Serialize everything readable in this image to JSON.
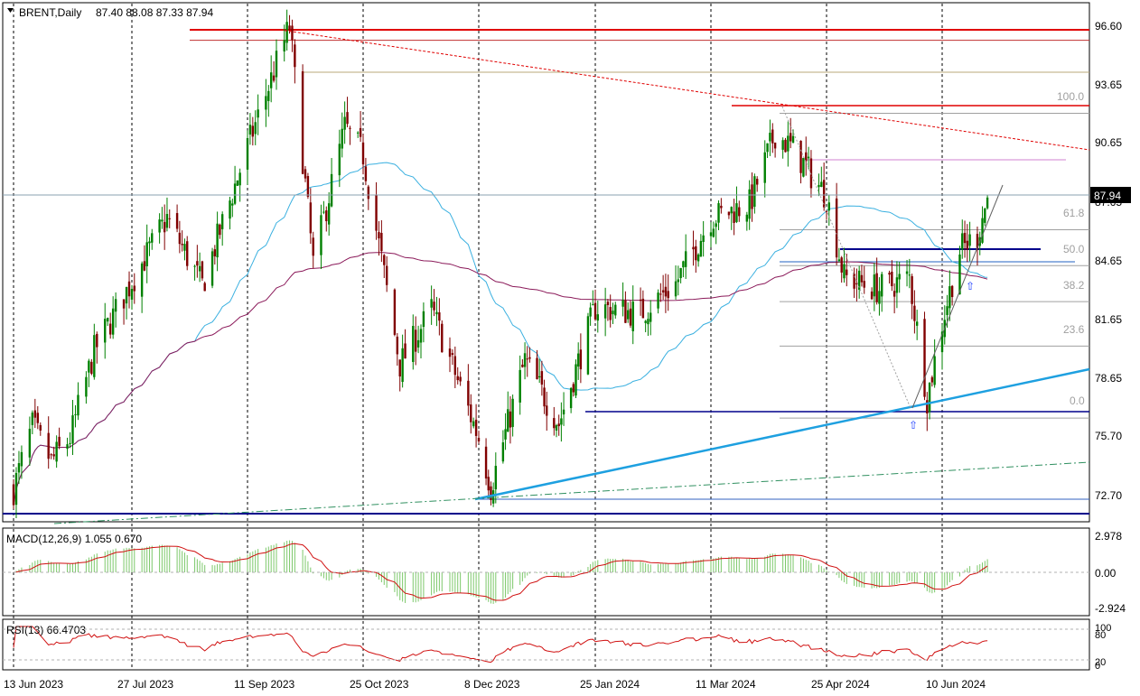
{
  "header": {
    "symbol": "BRENT,Daily",
    "ohlc": "87.40 88.08 87.33 87.94"
  },
  "price_axis": {
    "ticks": [
      "96.60",
      "93.65",
      "90.65",
      "87.65",
      "84.65",
      "81.65",
      "78.65",
      "75.70",
      "72.70"
    ],
    "current_price_label": "87.94"
  },
  "macd_panel": {
    "label": "MACD(12,26,9) 1.055 0.670",
    "ticks": [
      "2.978",
      "0.00",
      "-2.924"
    ]
  },
  "rsi_panel": {
    "label": "RSI(13) 66.4703",
    "ticks": [
      "100",
      "80",
      "20",
      "0"
    ]
  },
  "time_axis": {
    "labels": [
      "13 Jun 2023",
      "27 Jul 2023",
      "11 Sep 2023",
      "25 Oct 2023",
      "8 Dec 2023",
      "25 Jan 2024",
      "11 Mar 2024",
      "25 Apr 2024",
      "10 Jun 2024"
    ]
  },
  "fibonacci": {
    "levels": [
      "100.0",
      "61.8",
      "50.0",
      "38.2",
      "23.6",
      "0.0"
    ]
  },
  "colors": {
    "bull_candle": "#008000",
    "bear_candle": "#800000",
    "ma_fast": "#3ab0e0",
    "ma_slow": "#8b1a5a",
    "resistance": "#e00000",
    "support": "#00008b",
    "trendline": "#1ea0e0",
    "macd_hist": "#7cc86a",
    "macd_signal": "#d01010",
    "rsi_line": "#d01010"
  },
  "chart_data": {
    "type": "candlestick",
    "symbol": "BRENT",
    "timeframe": "Daily",
    "last_bar": {
      "open": 87.4,
      "high": 88.08,
      "low": 87.33,
      "close": 87.94
    },
    "x_range": [
      "13 Jun 2023",
      "10 Jun 2024"
    ],
    "ylim": [
      71.5,
      97.5
    ],
    "price_path": [
      {
        "date": "13 Jun 2023",
        "close": 73.2
      },
      {
        "date": "20 Jun 2023",
        "close": 76.4
      },
      {
        "date": "27 Jun 2023",
        "close": 74.6
      },
      {
        "date": "4 Jul 2023",
        "close": 75.8
      },
      {
        "date": "13 Jul 2023",
        "close": 80.2
      },
      {
        "date": "27 Jul 2023",
        "close": 83.7
      },
      {
        "date": "10 Aug 2023",
        "close": 86.9
      },
      {
        "date": "24 Aug 2023",
        "close": 83.5
      },
      {
        "date": "11 Sep 2023",
        "close": 90.5
      },
      {
        "date": "27 Sep 2023",
        "close": 96.6
      },
      {
        "date": "6 Oct 2023",
        "close": 84.6
      },
      {
        "date": "18 Oct 2023",
        "close": 91.5
      },
      {
        "date": "25 Oct 2023",
        "close": 90.1
      },
      {
        "date": "8 Nov 2023",
        "close": 79.5
      },
      {
        "date": "20 Nov 2023",
        "close": 82.3
      },
      {
        "date": "8 Dec 2023",
        "close": 75.8
      },
      {
        "date": "13 Dec 2023",
        "close": 73.3
      },
      {
        "date": "27 Dec 2023",
        "close": 79.7
      },
      {
        "date": "10 Jan 2024",
        "close": 76.5
      },
      {
        "date": "25 Jan 2024",
        "close": 82.4
      },
      {
        "date": "12 Feb 2024",
        "close": 82.1
      },
      {
        "date": "26 Feb 2024",
        "close": 83.6
      },
      {
        "date": "11 Mar 2024",
        "close": 86.9
      },
      {
        "date": "26 Mar 2024",
        "close": 87.6
      },
      {
        "date": "5 Apr 2024",
        "close": 91.2
      },
      {
        "date": "12 Apr 2024",
        "close": 90.4
      },
      {
        "date": "25 Apr 2024",
        "close": 88.0
      },
      {
        "date": "2 May 2024",
        "close": 83.9
      },
      {
        "date": "16 May 2024",
        "close": 83.3
      },
      {
        "date": "28 May 2024",
        "close": 83.9
      },
      {
        "date": "4 Jun 2024",
        "close": 77.8
      },
      {
        "date": "10 Jun 2024",
        "close": 81.6
      },
      {
        "date": "17 Jun 2024",
        "close": 85.3
      },
      {
        "date": "24 Jun 2024",
        "close": 86.0
      },
      {
        "date": "28 Jun 2024",
        "close": 87.94
      }
    ],
    "fibonacci_retracement": {
      "high": 92.2,
      "low": 76.8,
      "levels_pct": [
        100.0,
        61.8,
        50.0,
        38.2,
        23.6,
        0.0
      ]
    },
    "horizontal_levels": {
      "resistance": [
        96.6,
        96.3
      ],
      "support": [
        85.2,
        76.8,
        71.7
      ]
    },
    "macd": {
      "fast": 12,
      "slow": 26,
      "signal": 9,
      "main": 1.055,
      "signal_value": 0.67,
      "ylim": [
        -2.924,
        2.978
      ]
    },
    "rsi": {
      "period": 13,
      "value": 66.4703,
      "levels": [
        20,
        80
      ],
      "ylim": [
        0,
        100
      ]
    }
  }
}
